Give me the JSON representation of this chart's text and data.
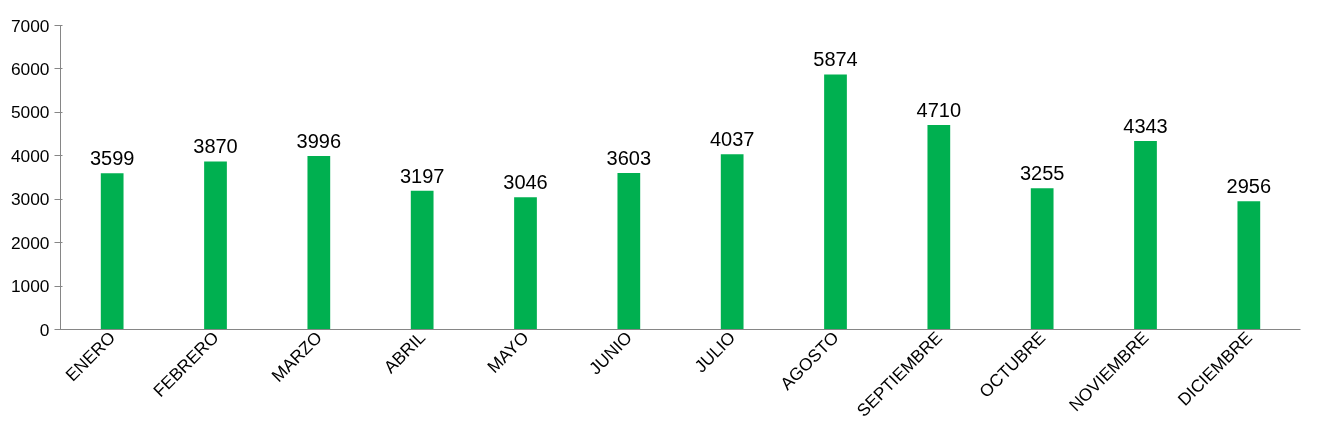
{
  "chart_data": {
    "type": "bar",
    "categories": [
      "ENERO",
      "FEBRERO",
      "MARZO",
      "ABRIL",
      "MAYO",
      "JUNIO",
      "JULIO",
      "AGOSTO",
      "SEPTIEMBRE",
      "OCTUBRE",
      "NOVIEMBRE",
      "DICIEMBRE"
    ],
    "values": [
      3599,
      3870,
      3996,
      3197,
      3046,
      3603,
      4037,
      5874,
      4710,
      3255,
      4343,
      2956
    ],
    "color": "#00b050",
    "ylim": [
      0,
      7000
    ],
    "yticks": [
      0,
      1000,
      2000,
      3000,
      4000,
      5000,
      6000,
      7000
    ],
    "grid": false,
    "data_labels": true
  }
}
